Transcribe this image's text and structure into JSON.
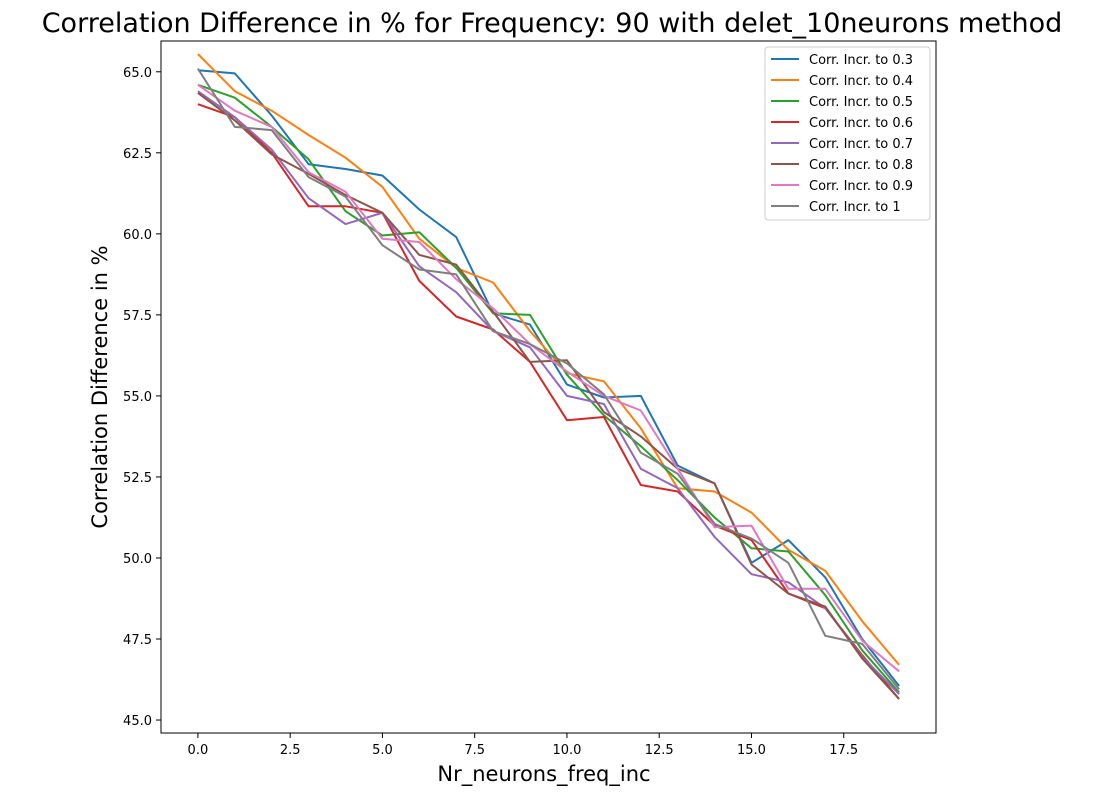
{
  "chart_data": {
    "type": "line",
    "title": "Correlation Difference in % for Frequency:  90 with delet_10neurons method",
    "xlabel": "Nr_neurons_freq_inc",
    "ylabel": "Correlation Difference in %",
    "xlim": [
      -1.0,
      20.0
    ],
    "ylim": [
      44.6,
      65.95
    ],
    "xticks": [
      0.0,
      2.5,
      5.0,
      7.5,
      10.0,
      12.5,
      15.0,
      17.5
    ],
    "xtick_labels": [
      "0.0",
      "2.5",
      "5.0",
      "7.5",
      "10.0",
      "12.5",
      "15.0",
      "17.5"
    ],
    "yticks": [
      45.0,
      47.5,
      50.0,
      52.5,
      55.0,
      57.5,
      60.0,
      62.5,
      65.0
    ],
    "ytick_labels": [
      "45.0",
      "47.5",
      "50.0",
      "52.5",
      "55.0",
      "57.5",
      "60.0",
      "62.5",
      "65.0"
    ],
    "grid": false,
    "legend_position": "top-right",
    "x": [
      0,
      1,
      2,
      3,
      4,
      5,
      6,
      7,
      8,
      9,
      10,
      11,
      12,
      13,
      14,
      15,
      16,
      17,
      18,
      19
    ],
    "series": [
      {
        "name": "Corr. Incr. to 0.3",
        "color": "#1f77b4",
        "values": [
          65.05,
          64.95,
          63.65,
          62.15,
          62.0,
          61.8,
          60.75,
          59.9,
          57.55,
          57.2,
          55.35,
          54.95,
          55.0,
          52.85,
          52.3,
          49.85,
          50.55,
          49.4,
          47.5,
          46.05
        ]
      },
      {
        "name": "Corr. Incr. to 0.4",
        "color": "#ff7f0e",
        "values": [
          65.55,
          64.4,
          63.8,
          63.05,
          62.35,
          61.45,
          59.85,
          58.95,
          58.5,
          57.0,
          55.7,
          55.45,
          54.0,
          52.15,
          52.05,
          51.4,
          50.25,
          49.6,
          48.05,
          46.7
        ]
      },
      {
        "name": "Corr. Incr. to 0.5",
        "color": "#2ca02c",
        "values": [
          64.6,
          64.2,
          63.3,
          62.3,
          60.7,
          59.95,
          60.05,
          58.95,
          57.55,
          57.5,
          55.65,
          54.4,
          53.45,
          52.4,
          51.25,
          50.3,
          50.2,
          48.85,
          47.15,
          45.85
        ]
      },
      {
        "name": "Corr. Incr. to 0.6",
        "color": "#d62728",
        "values": [
          64.0,
          63.6,
          62.5,
          60.85,
          60.85,
          60.65,
          58.55,
          57.45,
          57.05,
          56.05,
          54.25,
          54.35,
          52.25,
          52.05,
          51.0,
          50.55,
          48.9,
          48.45,
          47.0,
          45.65
        ]
      },
      {
        "name": "Corr. Incr. to 0.7",
        "color": "#9467bd",
        "values": [
          64.4,
          63.6,
          62.6,
          61.1,
          60.3,
          60.65,
          59.0,
          58.2,
          57.0,
          56.5,
          55.0,
          54.75,
          52.75,
          52.15,
          50.65,
          49.5,
          49.25,
          48.45,
          46.95,
          45.8
        ]
      },
      {
        "name": "Corr. Incr. to 0.8",
        "color": "#8c564b",
        "values": [
          64.35,
          63.5,
          62.45,
          61.85,
          61.2,
          60.65,
          59.35,
          59.05,
          57.6,
          56.05,
          56.1,
          54.5,
          53.75,
          52.75,
          52.3,
          49.8,
          48.9,
          48.5,
          46.9,
          45.65
        ]
      },
      {
        "name": "Corr. Incr. to 0.9",
        "color": "#e377c2",
        "values": [
          64.6,
          63.8,
          63.3,
          61.9,
          61.3,
          59.85,
          59.75,
          58.6,
          57.7,
          56.6,
          55.75,
          55.0,
          54.55,
          52.75,
          50.95,
          51.0,
          49.05,
          49.05,
          47.45,
          46.5
        ]
      },
      {
        "name": "Corr. Incr. to 1",
        "color": "#7f7f7f",
        "values": [
          65.1,
          63.3,
          63.2,
          61.75,
          61.15,
          59.65,
          58.9,
          58.75,
          57.0,
          56.6,
          56.0,
          55.05,
          53.25,
          52.6,
          51.05,
          50.6,
          49.85,
          47.6,
          47.35,
          45.95
        ]
      }
    ]
  }
}
